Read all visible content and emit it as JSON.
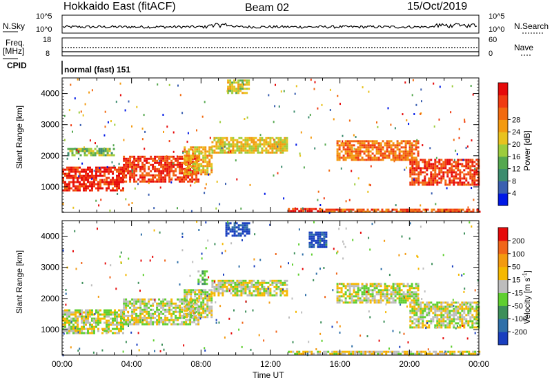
{
  "header": {
    "station": "Hokkaido East (fitACF)",
    "beam": "Beam 02",
    "date": "15/Oct/2019"
  },
  "strips": {
    "nsky_label": "N.Sky",
    "nsearch_label": "N.Search",
    "nsky_ticks": [
      "10^5",
      "10^0"
    ],
    "nsearch_ticks": [
      "10^5",
      "10^0"
    ],
    "freq_label_line1": "Freq.",
    "freq_label_line2": "[MHz]",
    "freq_ticks": [
      "18",
      "8"
    ],
    "nave_label": "Nave",
    "nave_ticks": [
      "60",
      "0"
    ],
    "cpid_label": "CPID",
    "cpid_text": "normal (fast) 151"
  },
  "chart_data": [
    {
      "type": "heatmap",
      "name": "power-panel",
      "ylabel": "Slant Range [km]",
      "yticks": [
        1000,
        2000,
        3000,
        4000
      ],
      "ylim": [
        180,
        4500
      ],
      "xticks": [
        "00:00",
        "04:00",
        "08:00",
        "12:00",
        "16:00",
        "20:00",
        "00:00"
      ],
      "xlim": [
        0,
        24
      ],
      "colorbar": {
        "label": "Power [dB]",
        "ticks": [
          "4",
          "8",
          "12",
          "16",
          "20",
          "24",
          "28"
        ],
        "colors": [
          "#0018e6",
          "#3a5fb0",
          "#3c8c6e",
          "#55a84f",
          "#9ccc3c",
          "#e8c21e",
          "#f39a10",
          "#f26a10",
          "#f03b12",
          "#e60a0a"
        ]
      },
      "regions": [
        {
          "t0": 0.0,
          "t1": 3.5,
          "r0": 900,
          "r1": 1650,
          "level": 0.9
        },
        {
          "t0": 3.5,
          "t1": 7.9,
          "r0": 1200,
          "r1": 2000,
          "level": 0.85
        },
        {
          "t0": 7.0,
          "t1": 8.6,
          "r0": 1400,
          "r1": 2300,
          "level": 0.6
        },
        {
          "t0": 8.6,
          "t1": 13.0,
          "r0": 2100,
          "r1": 2600,
          "level": 0.55
        },
        {
          "t0": 13.0,
          "t1": 14.8,
          "r0": 200,
          "r1": 320,
          "level": 0.9
        },
        {
          "t0": 14.8,
          "t1": 24.0,
          "r0": 200,
          "r1": 300,
          "level": 0.8
        },
        {
          "t0": 15.8,
          "t1": 20.5,
          "r0": 1900,
          "r1": 2500,
          "level": 0.75
        },
        {
          "t0": 20.0,
          "t1": 24.0,
          "r0": 1050,
          "r1": 1900,
          "level": 0.85
        },
        {
          "t0": 9.5,
          "t1": 10.8,
          "r0": 4050,
          "r1": 4450,
          "level": 0.5
        },
        {
          "t0": 0.3,
          "t1": 3.0,
          "r0": 2050,
          "r1": 2250,
          "level": 0.4
        }
      ]
    },
    {
      "type": "heatmap",
      "name": "velocity-panel",
      "ylabel": "Slant Range [km]",
      "yticks": [
        1000,
        2000,
        3000,
        4000
      ],
      "ylim": [
        180,
        4500
      ],
      "xticks": [
        "00:00",
        "04:00",
        "08:00",
        "12:00",
        "16:00",
        "20:00",
        "00:00"
      ],
      "xlim": [
        0,
        24
      ],
      "xlabel": "Time UT",
      "colorbar": {
        "label": "Velocity [m s",
        "label_sup": "-1",
        "label_end": "]",
        "ticks": [
          "200",
          "100",
          "50",
          "15",
          "-15",
          "-50",
          "-100",
          "-200"
        ],
        "colors": [
          "#1a3fbf",
          "#2f6fa8",
          "#3d8f5a",
          "#5fcf30",
          "#bdbdbd",
          "#f5b800",
          "#f39a10",
          "#f0661a",
          "#e60a0a"
        ]
      },
      "regions": [
        {
          "t0": 0.0,
          "t1": 3.5,
          "r0": 900,
          "r1": 1650,
          "level": 0.5
        },
        {
          "t0": 3.5,
          "t1": 7.9,
          "r0": 1200,
          "r1": 2000,
          "level": 0.5
        },
        {
          "t0": 7.0,
          "t1": 8.6,
          "r0": 1400,
          "r1": 2300,
          "level": 0.5
        },
        {
          "t0": 8.6,
          "t1": 13.0,
          "r0": 2100,
          "r1": 2600,
          "level": 0.5
        },
        {
          "t0": 13.0,
          "t1": 24.0,
          "r0": 200,
          "r1": 320,
          "level": 0.55
        },
        {
          "t0": 15.8,
          "t1": 20.5,
          "r0": 1900,
          "r1": 2500,
          "level": 0.5
        },
        {
          "t0": 20.0,
          "t1": 24.0,
          "r0": 1050,
          "r1": 1900,
          "level": 0.5
        },
        {
          "t0": 9.4,
          "t1": 10.8,
          "r0": 4050,
          "r1": 4450,
          "level": 0.05
        },
        {
          "t0": 14.2,
          "t1": 15.2,
          "r0": 3650,
          "r1": 4150,
          "level": 0.08
        },
        {
          "t0": 7.8,
          "t1": 8.3,
          "r0": 2500,
          "r1": 2900,
          "level": 0.35
        }
      ]
    }
  ]
}
